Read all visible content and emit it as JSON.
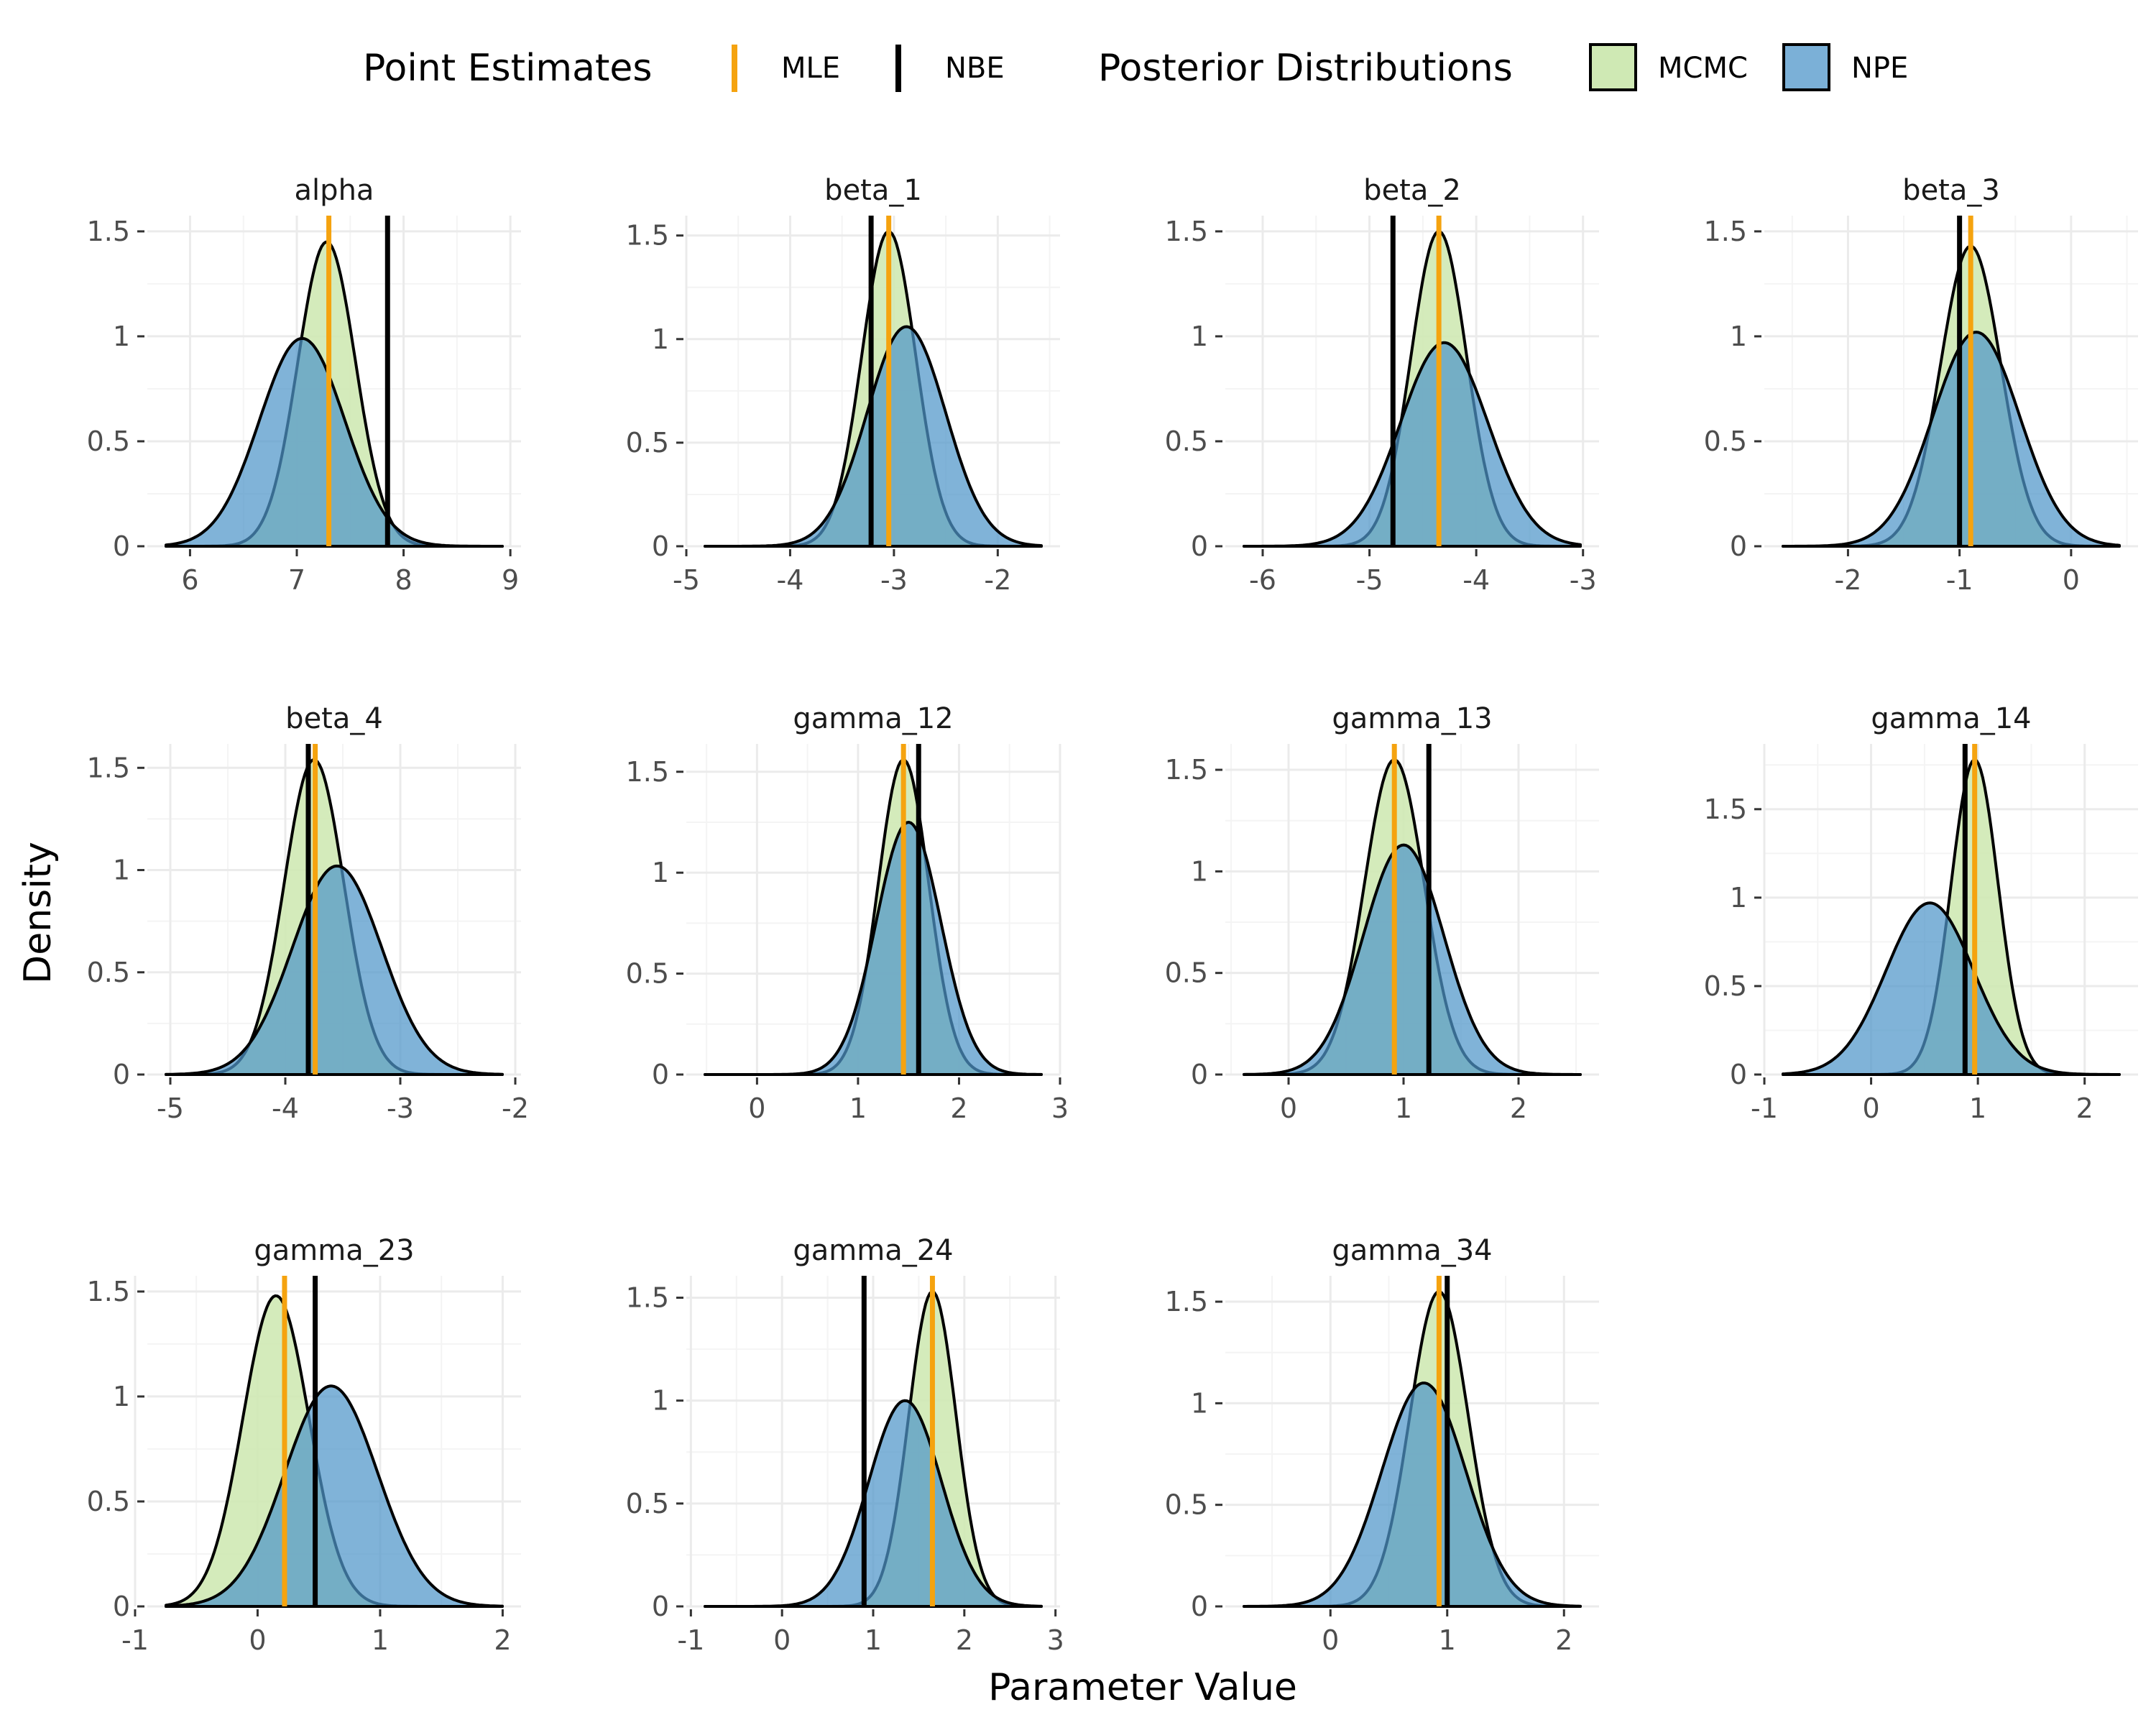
{
  "legend": {
    "point_title": "Point Estimates",
    "mle_label": "MLE",
    "nbe_label": "NBE",
    "dist_title": "Posterior Distributions",
    "mcmc_label": "MCMC",
    "npe_label": "NPE"
  },
  "colors": {
    "mle": "#f5a30f",
    "nbe": "#000000",
    "mcmc_fill": "#cfe9b4",
    "npe_fill": "#4f95c9",
    "grid_major": "#ebebeb",
    "grid_minor": "#f4f4f4"
  },
  "chart_data": {
    "type": "area",
    "xlabel": "Parameter Value",
    "ylabel": "Density",
    "panels": [
      {
        "title": "alpha",
        "xlim": [
          5.6,
          9.1
        ],
        "xticks": [
          6,
          7,
          8,
          9
        ],
        "ylim": [
          0,
          1.5
        ],
        "yticks": [
          0,
          0.5,
          1,
          1.5
        ],
        "mle": 7.3,
        "nbe": 7.85,
        "mcmc": {
          "mean": 7.28,
          "sd": 0.27,
          "peak": 1.45
        },
        "npe": {
          "mean": 7.05,
          "sd": 0.4,
          "peak": 0.99
        }
      },
      {
        "title": "beta_1",
        "xlim": [
          -5.0,
          -1.4
        ],
        "xticks": [
          -5,
          -4,
          -3,
          -2
        ],
        "ylim": [
          0,
          1.5
        ],
        "yticks": [
          0,
          0.5,
          1,
          1.5
        ],
        "mle": -3.05,
        "nbe": -3.22,
        "mcmc": {
          "mean": -3.05,
          "sd": 0.26,
          "peak": 1.52
        },
        "npe": {
          "mean": -2.88,
          "sd": 0.38,
          "peak": 1.06
        }
      },
      {
        "title": "beta_2",
        "xlim": [
          -6.35,
          -2.85
        ],
        "xticks": [
          -6,
          -5,
          -4,
          -3
        ],
        "ylim": [
          0,
          1.5
        ],
        "yticks": [
          0,
          0.5,
          1,
          1.5
        ],
        "mle": -4.35,
        "nbe": -4.78,
        "mcmc": {
          "mean": -4.35,
          "sd": 0.26,
          "peak": 1.5
        },
        "npe": {
          "mean": -4.3,
          "sd": 0.41,
          "peak": 0.97
        }
      },
      {
        "title": "beta_3",
        "xlim": [
          -2.75,
          0.6
        ],
        "xticks": [
          -2,
          -1,
          0
        ],
        "ylim": [
          0,
          1.5
        ],
        "yticks": [
          0,
          0.5,
          1,
          1.5
        ],
        "mle": -0.9,
        "nbe": -1.0,
        "mcmc": {
          "mean": -0.9,
          "sd": 0.27,
          "peak": 1.43
        },
        "npe": {
          "mean": -0.85,
          "sd": 0.39,
          "peak": 1.02
        }
      },
      {
        "title": "beta_4",
        "xlim": [
          -5.2,
          -1.95
        ],
        "xticks": [
          -5,
          -4,
          -3,
          -2
        ],
        "ylim": [
          0,
          1.5
        ],
        "yticks": [
          0,
          0.5,
          1,
          1.5
        ],
        "mle": -3.74,
        "nbe": -3.8,
        "mcmc": {
          "mean": -3.75,
          "sd": 0.26,
          "peak": 1.54
        },
        "npe": {
          "mean": -3.55,
          "sd": 0.39,
          "peak": 1.02
        }
      },
      {
        "title": "gamma_12",
        "xlim": [
          -0.7,
          3.0
        ],
        "xticks": [
          0,
          1,
          2,
          3
        ],
        "ylim": [
          0,
          1.5
        ],
        "yticks": [
          0,
          0.5,
          1,
          1.5
        ],
        "mle": 1.45,
        "nbe": 1.6,
        "mcmc": {
          "mean": 1.45,
          "sd": 0.25,
          "peak": 1.56
        },
        "npe": {
          "mean": 1.5,
          "sd": 0.32,
          "peak": 1.25
        }
      },
      {
        "title": "gamma_13",
        "xlim": [
          -0.55,
          2.7
        ],
        "xticks": [
          0,
          1,
          2
        ],
        "ylim": [
          0,
          1.5
        ],
        "yticks": [
          0,
          0.5,
          1,
          1.5
        ],
        "mle": 0.92,
        "nbe": 1.22,
        "mcmc": {
          "mean": 0.92,
          "sd": 0.26,
          "peak": 1.55
        },
        "npe": {
          "mean": 1.0,
          "sd": 0.35,
          "peak": 1.13
        }
      },
      {
        "title": "gamma_14",
        "xlim": [
          -1.0,
          2.5
        ],
        "xticks": [
          -1,
          0,
          1,
          2
        ],
        "ylim": [
          0,
          1.5
        ],
        "yticks": [
          0,
          0.5,
          1,
          1.5
        ],
        "mle": 0.97,
        "nbe": 0.88,
        "mcmc": {
          "mean": 0.97,
          "sd": 0.22,
          "peak": 1.78
        },
        "npe": {
          "mean": 0.55,
          "sd": 0.41,
          "peak": 0.97
        }
      },
      {
        "title": "gamma_23",
        "xlim": [
          -0.9,
          2.15
        ],
        "xticks": [
          -1,
          0,
          1,
          2
        ],
        "ylim": [
          0,
          1.5
        ],
        "yticks": [
          0,
          0.5,
          1,
          1.5
        ],
        "mle": 0.22,
        "nbe": 0.47,
        "mcmc": {
          "mean": 0.15,
          "sd": 0.27,
          "peak": 1.48
        },
        "npe": {
          "mean": 0.6,
          "sd": 0.38,
          "peak": 1.05
        }
      },
      {
        "title": "gamma_24",
        "xlim": [
          -1.05,
          3.05
        ],
        "xticks": [
          -1,
          0,
          1,
          2,
          3
        ],
        "ylim": [
          0,
          1.5
        ],
        "yticks": [
          0,
          0.5,
          1,
          1.5
        ],
        "mle": 1.65,
        "nbe": 0.9,
        "mcmc": {
          "mean": 1.65,
          "sd": 0.26,
          "peak": 1.53
        },
        "npe": {
          "mean": 1.35,
          "sd": 0.4,
          "peak": 1.0
        }
      },
      {
        "title": "gamma_34",
        "xlim": [
          -0.9,
          2.3
        ],
        "xticks": [
          0,
          1,
          2
        ],
        "ylim": [
          0,
          1.5
        ],
        "yticks": [
          0,
          0.5,
          1,
          1.5
        ],
        "mle": 0.93,
        "nbe": 1.0,
        "mcmc": {
          "mean": 0.93,
          "sd": 0.25,
          "peak": 1.55
        },
        "npe": {
          "mean": 0.8,
          "sd": 0.36,
          "peak": 1.1
        }
      }
    ]
  }
}
